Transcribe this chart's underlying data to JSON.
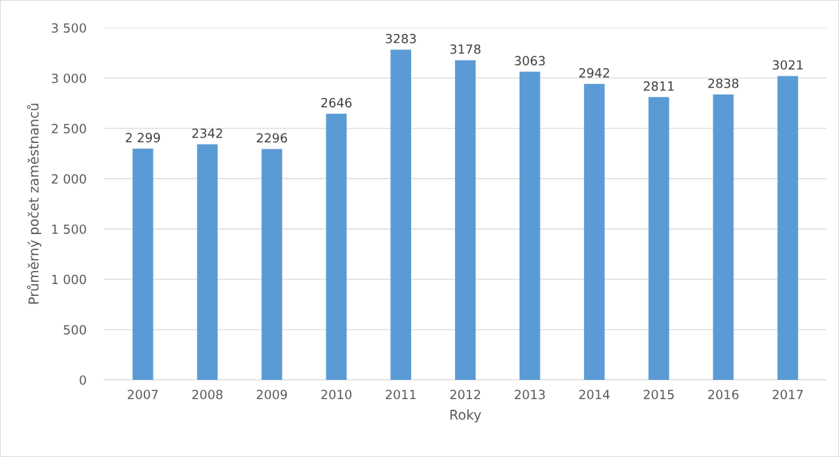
{
  "chart_data": {
    "type": "bar",
    "xlabel": "Roky",
    "ylabel": "Průměrný počet zaměstnanců",
    "categories": [
      "2007",
      "2008",
      "2009",
      "2010",
      "2011",
      "2012",
      "2013",
      "2014",
      "2015",
      "2016",
      "2017"
    ],
    "values": [
      2299,
      2342,
      2296,
      2646,
      3283,
      3178,
      3063,
      2942,
      2811,
      2838,
      3021
    ],
    "value_labels": [
      "2 299",
      "2342",
      "2296",
      "2646",
      "3283",
      "3178",
      "3063",
      "2942",
      "2811",
      "2838",
      "3021"
    ],
    "color": "#5b9bd5",
    "ylim": [
      0,
      3500
    ],
    "yticks": [
      0,
      500,
      {
        "value": 1000,
        "label": "1 000"
      },
      {
        "value": 1500,
        "label": "1 500"
      },
      {
        "value": 2000,
        "label": "2 000"
      },
      {
        "value": 2500,
        "label": "2 500"
      },
      {
        "value": 3000,
        "label": "3 000"
      },
      {
        "value": 3500,
        "label": "3 500"
      }
    ],
    "grid": "y",
    "legend": false
  }
}
